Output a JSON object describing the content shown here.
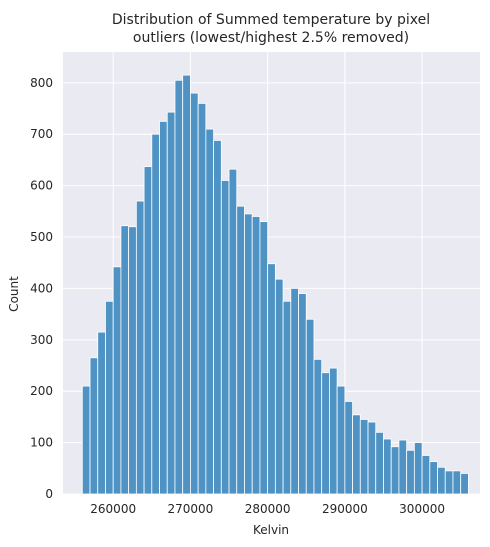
{
  "chart_data": {
    "type": "bar",
    "title_line1": "Distribution of Summed temperature by pixel",
    "title_line2": "outliers (lowest/highest 2.5% removed)",
    "xlabel": "Kelvin",
    "ylabel": "Count",
    "xlim": [
      253500,
      307500
    ],
    "ylim": [
      0,
      860
    ],
    "xticks": [
      260000,
      270000,
      280000,
      290000,
      300000
    ],
    "yticks": [
      0,
      100,
      200,
      300,
      400,
      500,
      600,
      700,
      800
    ],
    "bin_start": 256000,
    "bin_width": 1000,
    "values": [
      210,
      265,
      315,
      375,
      442,
      522,
      520,
      570,
      637,
      700,
      725,
      743,
      805,
      815,
      780,
      760,
      710,
      688,
      610,
      632,
      560,
      545,
      540,
      530,
      448,
      418,
      375,
      400,
      390,
      340,
      262,
      236,
      245,
      210,
      180,
      154,
      145,
      140,
      120,
      107,
      92,
      105,
      85,
      100,
      75,
      63,
      52,
      45,
      45,
      40
    ],
    "grid": true,
    "background": "#eaeaf2",
    "bar_color": "#4f93c4"
  }
}
